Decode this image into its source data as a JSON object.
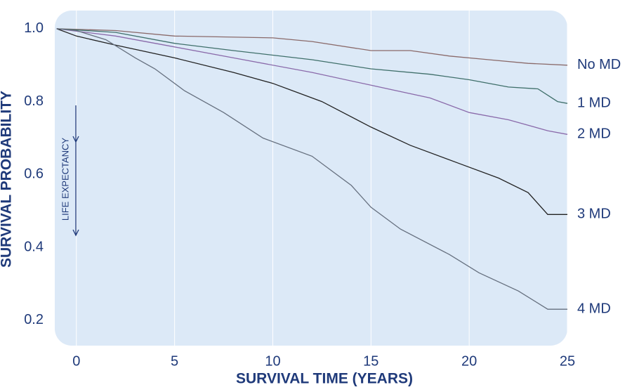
{
  "chart_data": {
    "type": "line",
    "x_label": "SURVIVAL TIME (YEARS)",
    "y_label": "SURVIVAL PROBABILITY",
    "annotation": "LIFE EXPECTANCY",
    "xlim": [
      -1.1,
      25
    ],
    "ylim": [
      0.13,
      1.05
    ],
    "xticks": [
      0,
      5,
      10,
      15,
      20,
      25
    ],
    "yticks": [
      {
        "value": 1,
        "label": "1.0"
      },
      0.8,
      0.6,
      0.4,
      0.2
    ],
    "grid": true,
    "series": [
      {
        "name": "No MD",
        "color": "#8a6a6a",
        "x": [
          -1,
          2,
          5,
          10,
          12,
          15,
          17,
          19,
          21,
          23,
          25
        ],
        "values": [
          1.0,
          0.995,
          0.98,
          0.975,
          0.965,
          0.94,
          0.94,
          0.925,
          0.915,
          0.905,
          0.9
        ]
      },
      {
        "name": "1 MD",
        "color": "#3f6f6a",
        "x": [
          -1,
          2,
          5,
          8,
          12,
          15,
          18,
          20,
          22,
          23.5,
          24.5,
          25
        ],
        "values": [
          1.0,
          0.99,
          0.96,
          0.94,
          0.915,
          0.89,
          0.875,
          0.86,
          0.84,
          0.835,
          0.8,
          0.795
        ]
      },
      {
        "name": "2 MD",
        "color": "#8a6aaa",
        "x": [
          -1,
          2,
          5,
          8,
          12,
          15,
          18,
          20,
          22,
          24,
          25
        ],
        "values": [
          1.0,
          0.98,
          0.95,
          0.92,
          0.88,
          0.845,
          0.81,
          0.77,
          0.75,
          0.72,
          0.71
        ]
      },
      {
        "name": "3 MD",
        "color": "#222222",
        "x": [
          -1,
          0,
          2,
          5,
          8,
          10,
          12.5,
          15,
          17,
          19.5,
          21.5,
          23,
          24,
          25
        ],
        "values": [
          1.0,
          0.98,
          0.955,
          0.92,
          0.88,
          0.85,
          0.8,
          0.73,
          0.68,
          0.63,
          0.59,
          0.55,
          0.49,
          0.49
        ]
      },
      {
        "name": "4 MD",
        "color": "#66707f",
        "x": [
          -1,
          0,
          1.5,
          3,
          4,
          5.5,
          7.5,
          9.5,
          12,
          14,
          15,
          16.5,
          19,
          20.5,
          22.5,
          24,
          25
        ],
        "values": [
          1.0,
          0.995,
          0.97,
          0.92,
          0.89,
          0.83,
          0.77,
          0.7,
          0.65,
          0.57,
          0.51,
          0.45,
          0.38,
          0.33,
          0.28,
          0.23,
          0.23
        ]
      }
    ]
  }
}
